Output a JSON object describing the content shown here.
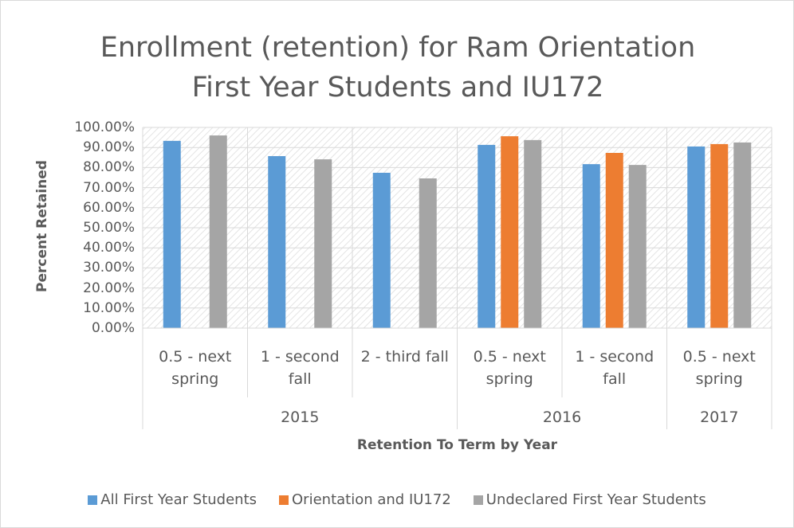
{
  "chart_data": {
    "type": "bar",
    "title": "Enrollment (retention) for Ram Orientation First Year Students and IU172",
    "x_label": "Retention To Term by Year",
    "y_label": "Percent Retained",
    "groups": [
      {
        "label": "2015",
        "categories": [
          "0.5 - next spring",
          "1 - second fall",
          "2 - third fall"
        ]
      },
      {
        "label": "2016",
        "categories": [
          "0.5 - next spring",
          "1 - second fall"
        ]
      },
      {
        "label": "2017",
        "categories": [
          "0.5 - next spring"
        ]
      }
    ],
    "series": [
      {
        "name": "All First Year Students",
        "color": "#5b9bd5",
        "values": [
          93.3,
          85.7,
          77.4,
          91.3,
          81.7,
          90.5
        ]
      },
      {
        "name": "Orientation and IU172",
        "color": "#ed7d31",
        "values": [
          null,
          null,
          null,
          95.6,
          87.3,
          91.7
        ]
      },
      {
        "name": "Undeclared First Year Students",
        "color": "#a5a5a5",
        "values": [
          96.0,
          84.1,
          74.6,
          93.7,
          81.3,
          92.5
        ]
      }
    ],
    "ylim": [
      0,
      100
    ],
    "yticks": [
      {
        "value": 0,
        "label": "0.00%"
      },
      {
        "value": 10,
        "label": "10.00%"
      },
      {
        "value": 20,
        "label": "20.00%"
      },
      {
        "value": 30,
        "label": "30.00%"
      },
      {
        "value": 40,
        "label": "40.00%"
      },
      {
        "value": 50,
        "label": "50.00%"
      },
      {
        "value": 60,
        "label": "60.00%"
      },
      {
        "value": 70,
        "label": "70.00%"
      },
      {
        "value": 80,
        "label": "80.00%"
      },
      {
        "value": 90,
        "label": "90.00%"
      },
      {
        "value": 100,
        "label": "100.00%"
      }
    ],
    "grid": true,
    "legend": "bottom"
  }
}
